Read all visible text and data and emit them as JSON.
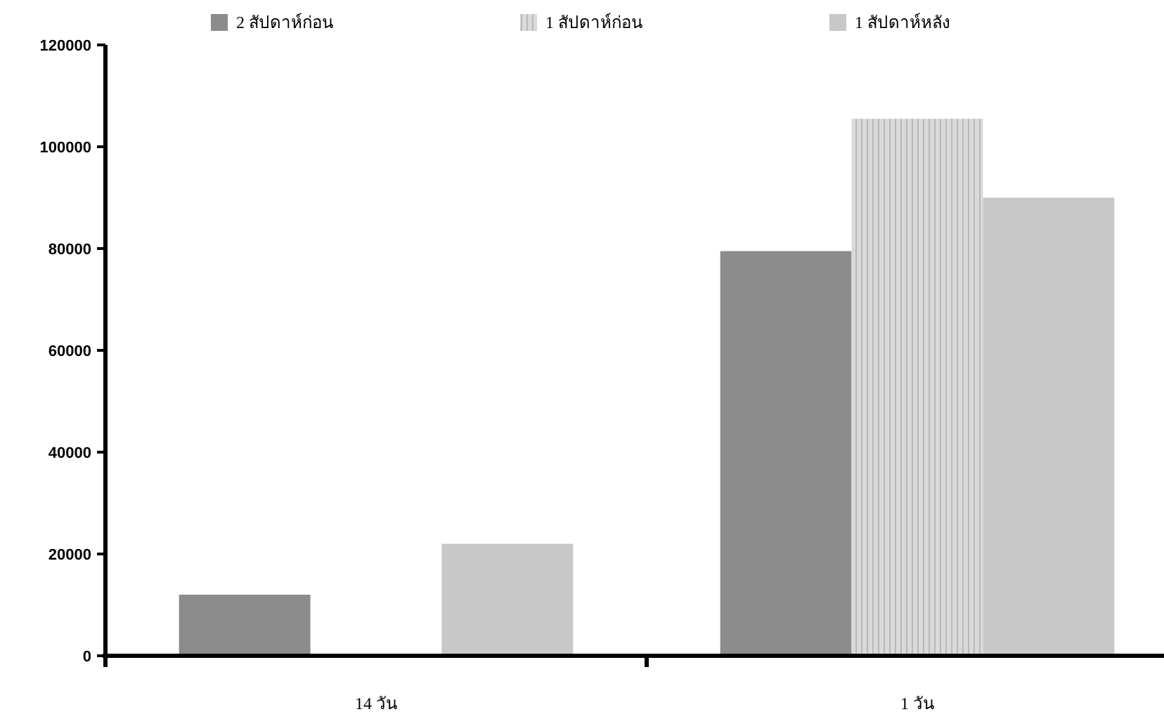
{
  "chart_data": {
    "type": "bar",
    "categories": [
      "14 วัน",
      "1 วัน"
    ],
    "series": [
      {
        "name": "2 สัปดาห์ก่อน",
        "color": "#8c8c8c",
        "values": [
          12000,
          79500
        ]
      },
      {
        "name": "1 สัปดาห์ก่อน",
        "color": "#dadada",
        "values": [
          null,
          105500
        ]
      },
      {
        "name": "1 สัปดาห์หลัง",
        "color": "#c8c8c8",
        "values": [
          22000,
          90000
        ]
      }
    ],
    "ylim": [
      0,
      120000
    ],
    "yticks": [
      0,
      20000,
      40000,
      60000,
      80000,
      100000,
      120000
    ],
    "grid": false,
    "legend": "top"
  }
}
